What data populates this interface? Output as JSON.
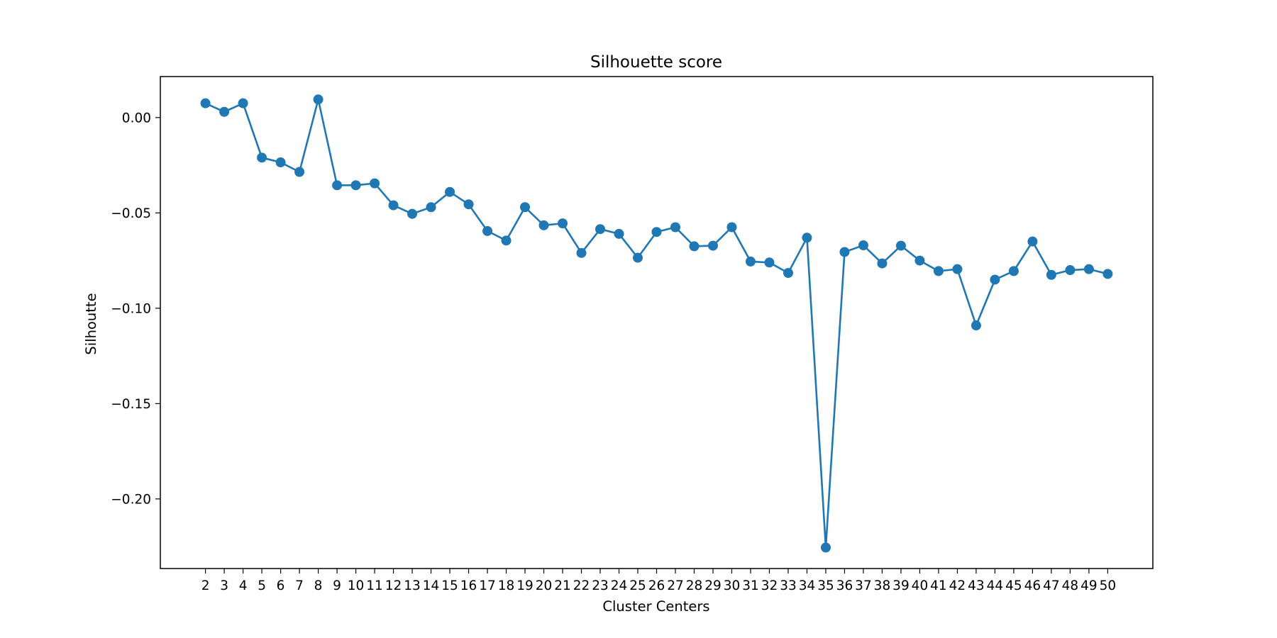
{
  "chart_data": {
    "type": "line",
    "title": "Silhouette score",
    "xlabel": "Cluster Centers",
    "ylabel": "Silhoutte",
    "x": [
      2,
      3,
      4,
      5,
      6,
      7,
      8,
      9,
      10,
      11,
      12,
      13,
      14,
      15,
      16,
      17,
      18,
      19,
      20,
      21,
      22,
      23,
      24,
      25,
      26,
      27,
      28,
      29,
      30,
      31,
      32,
      33,
      34,
      35,
      36,
      37,
      38,
      39,
      40,
      41,
      42,
      43,
      44,
      45,
      46,
      47,
      48,
      49,
      50
    ],
    "y": [
      0.0075,
      0.003,
      0.0075,
      -0.021,
      -0.0235,
      -0.0285,
      0.0095,
      -0.0355,
      -0.0355,
      -0.0345,
      -0.046,
      -0.0505,
      -0.047,
      -0.039,
      -0.0455,
      -0.0595,
      -0.0645,
      -0.047,
      -0.0565,
      -0.0555,
      -0.071,
      -0.0585,
      -0.061,
      -0.0735,
      -0.06,
      -0.0575,
      -0.0675,
      -0.0672,
      -0.0575,
      -0.0755,
      -0.076,
      -0.0815,
      -0.063,
      -0.2255,
      -0.0705,
      -0.067,
      -0.0765,
      -0.0672,
      -0.075,
      -0.0805,
      -0.0795,
      -0.109,
      -0.085,
      -0.0805,
      -0.065,
      -0.0825,
      -0.08,
      -0.0795,
      -0.082
    ],
    "yticks": [
      0.0,
      -0.05,
      -0.1,
      -0.15,
      -0.2
    ],
    "ytick_labels": [
      "0.00",
      "−0.05",
      "−0.10",
      "−0.15",
      "−0.20"
    ],
    "xticks": [
      2,
      3,
      4,
      5,
      6,
      7,
      8,
      9,
      10,
      11,
      12,
      13,
      14,
      15,
      16,
      17,
      18,
      19,
      20,
      21,
      22,
      23,
      24,
      25,
      26,
      27,
      28,
      29,
      30,
      31,
      32,
      33,
      34,
      35,
      36,
      37,
      38,
      39,
      40,
      41,
      42,
      43,
      44,
      45,
      46,
      47,
      48,
      49,
      50
    ],
    "xlim": [
      -0.4,
      52.4
    ],
    "ylim": [
      -0.2365,
      0.0215
    ],
    "grid": false,
    "legend": false,
    "series_color": "#1f77b4",
    "marker": "circle"
  }
}
